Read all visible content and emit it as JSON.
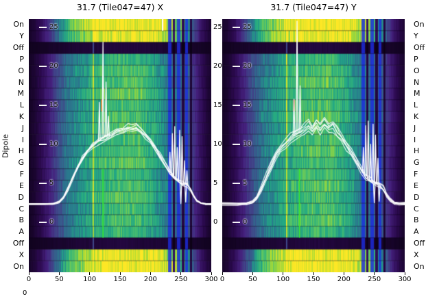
{
  "figure": {
    "ylabel": "Dipole",
    "corner_label": "0",
    "dipole_labels": [
      "On",
      "Y",
      "Off",
      "P",
      "O",
      "N",
      "M",
      "L",
      "K",
      "J",
      "I",
      "H",
      "G",
      "F",
      "E",
      "D",
      "C",
      "B",
      "A",
      "Off",
      "X",
      "On"
    ],
    "stripe_blue": "#1b2ce0"
  },
  "colormap": {
    "stops": [
      [
        0,
        "#0a0112"
      ],
      [
        0.1,
        "#2c0a50"
      ],
      [
        0.22,
        "#45217e"
      ],
      [
        0.35,
        "#3f4a8a"
      ],
      [
        0.48,
        "#2a788e"
      ],
      [
        0.6,
        "#22a884"
      ],
      [
        0.72,
        "#4ec16b"
      ],
      [
        0.84,
        "#a8db34"
      ],
      [
        1,
        "#fde725"
      ]
    ]
  },
  "profiles": {
    "bright": [
      [
        0,
        0.04
      ],
      [
        8,
        0.06
      ],
      [
        20,
        0.12
      ],
      [
        35,
        0.3
      ],
      [
        50,
        0.5
      ],
      [
        65,
        0.68
      ],
      [
        80,
        0.8
      ],
      [
        95,
        0.88
      ],
      [
        110,
        0.95
      ],
      [
        125,
        1.0
      ],
      [
        205,
        1.0
      ],
      [
        220,
        0.92
      ],
      [
        235,
        0.85
      ],
      [
        248,
        0.72
      ],
      [
        258,
        0.6
      ],
      [
        266,
        0.45
      ],
      [
        274,
        0.3
      ],
      [
        282,
        0.16
      ],
      [
        292,
        0.08
      ],
      [
        300,
        0.05
      ]
    ],
    "mid": [
      [
        0,
        0.03
      ],
      [
        8,
        0.05
      ],
      [
        20,
        0.1
      ],
      [
        35,
        0.22
      ],
      [
        48,
        0.35
      ],
      [
        60,
        0.45
      ],
      [
        72,
        0.5
      ],
      [
        85,
        0.55
      ],
      [
        100,
        0.6
      ],
      [
        115,
        0.64
      ],
      [
        130,
        0.67
      ],
      [
        150,
        0.7
      ],
      [
        172,
        0.7
      ],
      [
        188,
        0.67
      ],
      [
        202,
        0.62
      ],
      [
        214,
        0.56
      ],
      [
        225,
        0.5
      ],
      [
        235,
        0.46
      ],
      [
        245,
        0.43
      ],
      [
        255,
        0.41
      ],
      [
        263,
        0.38
      ],
      [
        270,
        0.28
      ],
      [
        278,
        0.18
      ],
      [
        286,
        0.1
      ],
      [
        294,
        0.06
      ],
      [
        300,
        0.04
      ]
    ],
    "off": [
      [
        0,
        0.02
      ],
      [
        40,
        0.04
      ],
      [
        90,
        0.06
      ],
      [
        160,
        0.07
      ],
      [
        230,
        0.05
      ],
      [
        270,
        0.04
      ],
      [
        300,
        0.02
      ]
    ]
  },
  "chart_data": [
    {
      "type": "heatmap",
      "title": "31.7 (Tile047=47) X",
      "x_range": [
        0,
        300
      ],
      "x_ticks": [
        0,
        50,
        100,
        150,
        200,
        250,
        300
      ],
      "row_kinds": [
        "bright",
        "bright",
        "off",
        "mid",
        "mid",
        "mid",
        "mid",
        "mid",
        "mid",
        "mid",
        "mid",
        "mid",
        "mid",
        "mid",
        "mid",
        "mid",
        "mid",
        "mid",
        "mid",
        "off",
        "bright",
        "bright"
      ],
      "row_gains": [
        1.0,
        0.95,
        1.0,
        0.94,
        1.02,
        1.0,
        1.06,
        0.97,
        1.0,
        1.03,
        0.98,
        1.0,
        1.05,
        0.95,
        1.0,
        1.02,
        0.97,
        1.0,
        0.96,
        1.0,
        0.96,
        1.0
      ],
      "overlay_axis_ticks": [
        25,
        20,
        15,
        10,
        5,
        0
      ],
      "right_axis_ticks": [
        25,
        20,
        15,
        10,
        5,
        0
      ],
      "stripes": [
        {
          "x": 105,
          "w": 1.2,
          "mode": "boost"
        },
        {
          "x": 231,
          "w": 2.6,
          "mode": "blue"
        },
        {
          "x": 238,
          "w": 2.0,
          "mode": "dark"
        },
        {
          "x": 246,
          "w": 2.6,
          "mode": "blue"
        },
        {
          "x": 253,
          "w": 2.0,
          "mode": "dark"
        },
        {
          "x": 259,
          "w": 2.0,
          "mode": "blue"
        },
        {
          "x": 266,
          "w": 1.5,
          "mode": "dark"
        }
      ],
      "artifacts": [
        {
          "x": 220,
          "r0": 0,
          "r1": 1,
          "color": "#ffffff",
          "w": 2
        },
        {
          "x": 122,
          "r0": 13,
          "r1": 19,
          "color": "#35e82e",
          "w": 1.6
        },
        {
          "x": 120,
          "r0": 7,
          "r1": 8,
          "color": "#ff7300",
          "w": 2
        }
      ],
      "overlay": {
        "base_curve": [
          [
            0,
            2.35
          ],
          [
            25,
            2.35
          ],
          [
            40,
            2.4
          ],
          [
            50,
            2.6
          ],
          [
            57,
            3.2
          ],
          [
            64,
            4.2
          ],
          [
            72,
            5.6
          ],
          [
            80,
            7.0
          ],
          [
            88,
            8.2
          ],
          [
            96,
            9.1
          ],
          [
            105,
            9.8
          ],
          [
            115,
            10.4
          ],
          [
            125,
            10.8
          ],
          [
            135,
            11.2
          ],
          [
            145,
            11.6
          ],
          [
            155,
            11.9
          ],
          [
            163,
            12.1
          ],
          [
            170,
            12.0
          ],
          [
            177,
            12.2
          ],
          [
            184,
            11.8
          ],
          [
            192,
            11.2
          ],
          [
            200,
            10.4
          ],
          [
            208,
            9.5
          ],
          [
            216,
            8.5
          ],
          [
            224,
            7.4
          ],
          [
            232,
            6.4
          ],
          [
            239,
            5.7
          ],
          [
            246,
            5.3
          ],
          [
            253,
            5.0
          ],
          [
            260,
            4.8
          ],
          [
            266,
            4.2
          ],
          [
            271,
            3.4
          ],
          [
            276,
            2.8
          ],
          [
            283,
            2.45
          ],
          [
            291,
            2.35
          ],
          [
            300,
            2.35
          ]
        ],
        "spikes": [
          [
            116,
            15.4
          ],
          [
            122,
            23.1
          ],
          [
            127,
            18.0
          ],
          [
            131,
            13.6
          ],
          [
            232,
            9.0
          ],
          [
            236,
            11.4
          ],
          [
            240,
            12.3
          ],
          [
            244,
            9.6
          ],
          [
            248,
            11.8
          ],
          [
            250,
            2.4
          ],
          [
            252,
            11.0
          ],
          [
            256,
            7.9
          ],
          [
            258,
            2.6
          ],
          [
            260,
            6.6
          ]
        ],
        "line_scales": [
          1.0,
          0.985,
          1.015,
          0.97,
          1.03,
          1.0
        ]
      }
    },
    {
      "type": "heatmap",
      "title": "31.7 (Tile047=47) Y",
      "x_range": [
        0,
        300
      ],
      "x_ticks": [
        0,
        50,
        100,
        150,
        200,
        250,
        300
      ],
      "row_kinds": [
        "bright",
        "bright",
        "off",
        "mid",
        "mid",
        "mid",
        "mid",
        "mid",
        "mid",
        "mid",
        "mid",
        "mid",
        "mid",
        "mid",
        "mid",
        "mid",
        "mid",
        "mid",
        "mid",
        "off",
        "bright",
        "bright"
      ],
      "row_gains": [
        1.0,
        0.97,
        1.0,
        0.96,
        1.0,
        1.04,
        0.98,
        1.0,
        1.05,
        0.97,
        1.0,
        1.02,
        0.96,
        1.0,
        1.04,
        0.98,
        1.0,
        1.03,
        0.95,
        1.0,
        0.98,
        1.0
      ],
      "overlay_axis_ticks": [
        25,
        20,
        15,
        10,
        5,
        0
      ],
      "stripes": [
        {
          "x": 105,
          "w": 1.2,
          "mode": "boost"
        },
        {
          "x": 231,
          "w": 2.6,
          "mode": "blue"
        },
        {
          "x": 238,
          "w": 2.0,
          "mode": "dark"
        },
        {
          "x": 246,
          "w": 2.6,
          "mode": "blue"
        },
        {
          "x": 253,
          "w": 2.0,
          "mode": "dark"
        },
        {
          "x": 259,
          "w": 2.0,
          "mode": "blue"
        },
        {
          "x": 266,
          "w": 1.5,
          "mode": "dark"
        }
      ],
      "artifacts": [
        {
          "x": 127,
          "r0": 13,
          "r1": 19,
          "color": "#35e82e",
          "w": 1.6
        },
        {
          "x": 118,
          "r0": 7,
          "r1": 8,
          "color": "#ff2f00",
          "w": 2
        }
      ],
      "overlay": {
        "base_curve": [
          [
            0,
            2.35
          ],
          [
            25,
            2.35
          ],
          [
            40,
            2.4
          ],
          [
            50,
            2.6
          ],
          [
            57,
            3.2
          ],
          [
            64,
            4.3
          ],
          [
            72,
            5.8
          ],
          [
            80,
            7.2
          ],
          [
            88,
            8.5
          ],
          [
            96,
            9.4
          ],
          [
            104,
            10.1
          ],
          [
            112,
            10.7
          ],
          [
            120,
            11.2
          ],
          [
            128,
            11.5
          ],
          [
            135,
            11.9
          ],
          [
            142,
            12.4
          ],
          [
            148,
            11.8
          ],
          [
            155,
            12.6
          ],
          [
            161,
            12.0
          ],
          [
            168,
            12.7
          ],
          [
            175,
            12.1
          ],
          [
            182,
            12.4
          ],
          [
            189,
            11.6
          ],
          [
            196,
            10.8
          ],
          [
            204,
            9.9
          ],
          [
            212,
            9.0
          ],
          [
            220,
            7.9
          ],
          [
            228,
            6.8
          ],
          [
            236,
            5.9
          ],
          [
            243,
            5.4
          ],
          [
            250,
            5.0
          ],
          [
            258,
            4.8
          ],
          [
            265,
            4.3
          ],
          [
            270,
            3.5
          ],
          [
            276,
            2.9
          ],
          [
            283,
            2.5
          ],
          [
            291,
            2.4
          ],
          [
            300,
            2.4
          ]
        ],
        "spikes": [
          [
            118,
            15.8
          ],
          [
            123,
            25.8
          ],
          [
            128,
            17.5
          ],
          [
            232,
            9.6
          ],
          [
            236,
            12.4
          ],
          [
            240,
            13.0
          ],
          [
            244,
            10.0
          ],
          [
            248,
            12.6
          ],
          [
            250,
            2.5
          ],
          [
            252,
            11.2
          ],
          [
            256,
            8.2
          ],
          [
            258,
            2.7
          ]
        ],
        "line_scales": [
          1.0,
          0.97,
          1.03,
          0.945,
          1.055,
          1.0
        ]
      }
    }
  ]
}
